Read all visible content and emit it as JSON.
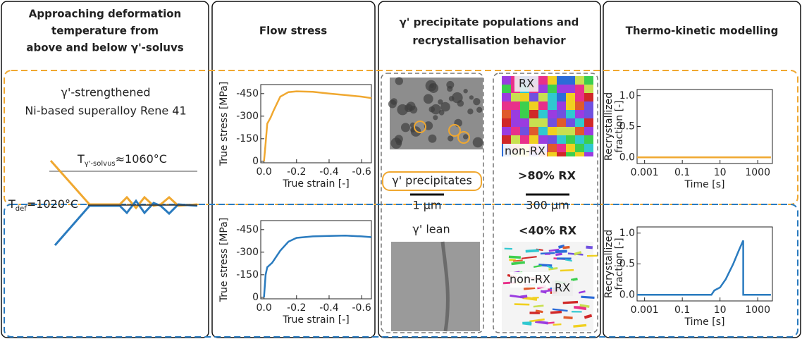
{
  "headers": [
    [
      "Approaching deformation",
      "temperature from",
      "above and below γ'-soluvs"
    ],
    [
      "Flow stress"
    ],
    [
      "γ' precipitate populations and",
      "recrystallisation behavior"
    ],
    [
      "Thermo-kinetic modelling"
    ]
  ],
  "alloy": [
    "γ'-strengthened",
    "Ni-based superalloy Rene 41"
  ],
  "schematic": {
    "solvus": {
      "symbol": "T",
      "subscript": "γ'-solvus",
      "value": "≈1060°C"
    },
    "deformation": {
      "symbol": "T",
      "subscript": "def",
      "value": "=1020°C"
    }
  },
  "micrographs": {
    "top_left": {
      "label": "γ' precipitates",
      "scale": "1 µm"
    },
    "top_right": {
      "rx": "RX",
      "non_rx": "non-RX",
      "fraction": ">80% RX",
      "scale": "300 µm"
    },
    "bottom_left": {
      "label": "γ' lean"
    },
    "bottom_right": {
      "fraction": "<40% RX",
      "non_rx": "non-RX",
      "rx": "RX"
    }
  },
  "chart_data": [
    {
      "type": "line",
      "xlabel": "True strain [-]",
      "ylabel": [
        "True stress [MPa]"
      ],
      "xlim": [
        0.02,
        -0.66
      ],
      "ylim": [
        10,
        -510
      ],
      "xticks": [
        {
          "value": 0,
          "label": "0.0"
        },
        -0.2,
        -0.4,
        -0.6
      ],
      "yticks": [
        0,
        -150,
        -300,
        -450
      ],
      "x": [
        0,
        -0.01,
        -0.02,
        -0.04,
        -0.06,
        -0.1,
        -0.15,
        -0.2,
        -0.3,
        -0.4,
        -0.5,
        -0.6,
        -0.66
      ],
      "series": [
        {
          "color": "#f0a830",
          "values": [
            0,
            -120,
            -250,
            -290,
            -340,
            -430,
            -460,
            -465,
            -462,
            -450,
            -440,
            -430,
            -420
          ]
        }
      ]
    },
    {
      "type": "line",
      "xlabel": "True strain [-]",
      "ylabel": [
        "True stress [MPa]"
      ],
      "xlim": [
        0.02,
        -0.66
      ],
      "ylim": [
        10,
        -510
      ],
      "xticks": [
        {
          "value": 0,
          "label": "0.0"
        },
        -0.2,
        -0.4,
        -0.6
      ],
      "yticks": [
        0,
        -150,
        -300,
        -450
      ],
      "x": [
        0,
        -0.01,
        -0.02,
        -0.05,
        -0.1,
        -0.15,
        -0.2,
        -0.3,
        -0.4,
        -0.5,
        -0.6,
        -0.66
      ],
      "series": [
        {
          "color": "#2a7bbf",
          "values": [
            0,
            -150,
            -200,
            -230,
            -310,
            -370,
            -395,
            -405,
            -408,
            -410,
            -405,
            -400
          ]
        }
      ]
    },
    {
      "type": "line",
      "xscale": "log",
      "xlabel": "Time [s]",
      "ylabel": [
        "Recrystallized",
        "fraction [-]"
      ],
      "xlim": [
        0.0004,
        6000
      ],
      "ylim": [
        -0.1,
        1.1
      ],
      "xticks": [
        0.001,
        0.1,
        10,
        1000
      ],
      "yticks": [
        {
          "value": 0,
          "label": "0.0"
        },
        0.5,
        {
          "value": 1,
          "label": "1.0"
        }
      ],
      "x": [
        0.0004,
        5000
      ],
      "series": [
        {
          "color": "#f0a830",
          "values": [
            0,
            0
          ]
        }
      ]
    },
    {
      "type": "line",
      "xscale": "log",
      "xlabel": "Time [s]",
      "ylabel": [
        "Recrystallized",
        "fraction [-]"
      ],
      "xlim": [
        0.0004,
        6000
      ],
      "ylim": [
        -0.1,
        1.1
      ],
      "xticks": [
        0.001,
        0.1,
        10,
        1000
      ],
      "yticks": [
        {
          "value": 0,
          "label": "0.0"
        },
        0.5,
        {
          "value": 1,
          "label": "1.0"
        }
      ],
      "x": [
        0.0004,
        3.5,
        5,
        10,
        20,
        50,
        100,
        170,
        170,
        5000
      ],
      "series": [
        {
          "color": "#2a7bbf",
          "values": [
            0,
            0,
            0.07,
            0.12,
            0.25,
            0.5,
            0.72,
            0.88,
            0,
            0
          ]
        }
      ]
    }
  ]
}
